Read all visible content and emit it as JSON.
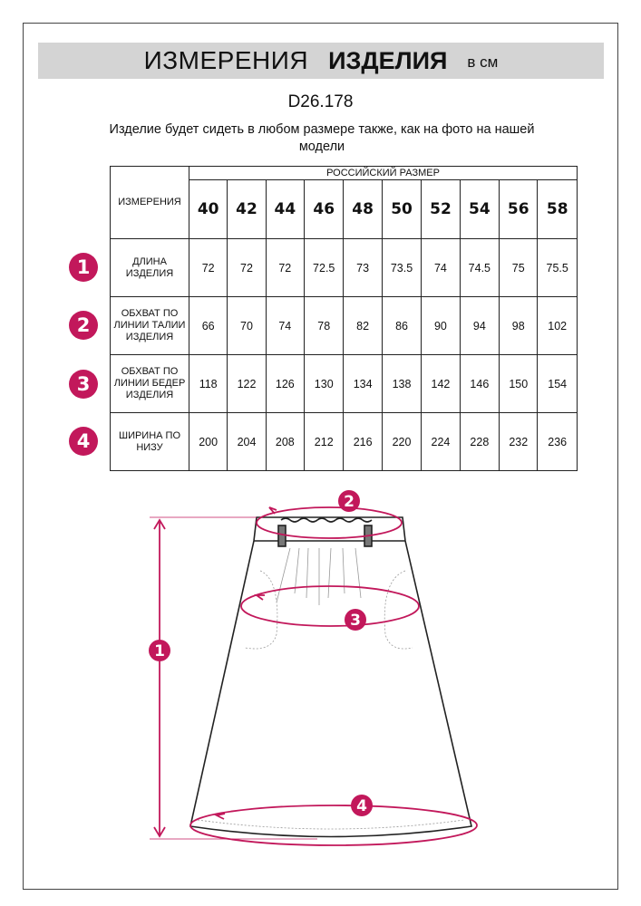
{
  "header": {
    "title_regular": "ИЗМЕРЕНИЯ",
    "title_bold": "ИЗДЕЛИЯ",
    "unit": "в см"
  },
  "article_code": "D26.178",
  "note": "Изделие будет сидеть в любом размере также, как на фото на нашей модели",
  "table": {
    "corner_label": "ИЗМЕРЕНИЯ",
    "group_header": "РОССИЙСКИЙ РАЗМЕР",
    "sizes": [
      "40",
      "42",
      "44",
      "46",
      "48",
      "50",
      "52",
      "54",
      "56",
      "58"
    ],
    "rows": [
      {
        "number": "1",
        "label": "ДЛИНА ИЗДЕЛИЯ",
        "values": [
          "72",
          "72",
          "72",
          "72.5",
          "73",
          "73.5",
          "74",
          "74.5",
          "75",
          "75.5"
        ]
      },
      {
        "number": "2",
        "label": "ОБХВАТ ПО ЛИНИИ ТАЛИИ ИЗДЕЛИЯ",
        "values": [
          "66",
          "70",
          "74",
          "78",
          "82",
          "86",
          "90",
          "94",
          "98",
          "102"
        ]
      },
      {
        "number": "3",
        "label": "ОБХВАТ ПО ЛИНИИ БЕДЕР ИЗДЕЛИЯ",
        "values": [
          "118",
          "122",
          "126",
          "130",
          "134",
          "138",
          "142",
          "146",
          "150",
          "154"
        ]
      },
      {
        "number": "4",
        "label": "ШИРИНА ПО НИЗУ",
        "values": [
          "200",
          "204",
          "208",
          "212",
          "216",
          "220",
          "224",
          "228",
          "232",
          "236"
        ]
      }
    ]
  },
  "diagram": {
    "markers": [
      "1",
      "2",
      "3",
      "4"
    ],
    "accent_color": "#c2185b"
  }
}
